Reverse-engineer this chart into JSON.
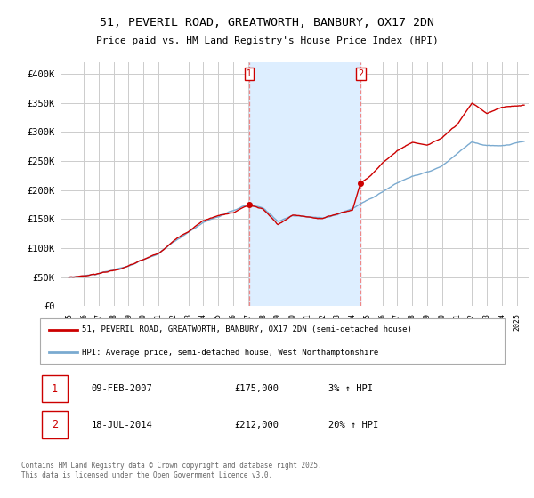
{
  "title_line1": "51, PEVERIL ROAD, GREATWORTH, BANBURY, OX17 2DN",
  "title_line2": "Price paid vs. HM Land Registry's House Price Index (HPI)",
  "ylabel_ticks": [
    "£0",
    "£50K",
    "£100K",
    "£150K",
    "£200K",
    "£250K",
    "£300K",
    "£350K",
    "£400K"
  ],
  "ytick_values": [
    0,
    50000,
    100000,
    150000,
    200000,
    250000,
    300000,
    350000,
    400000
  ],
  "ylim": [
    0,
    420000
  ],
  "xlim_start": 1994.5,
  "xlim_end": 2025.8,
  "plot_bg_color": "#ffffff",
  "grid_color": "#cccccc",
  "shade_color": "#ddeeff",
  "red_line_color": "#cc0000",
  "blue_line_color": "#7aaad0",
  "vline_color": "#ee8888",
  "annotation_box_color": "#cc0000",
  "sale1_x": 2007.08,
  "sale1_y": 175000,
  "sale1_label": "1",
  "sale1_date": "09-FEB-2007",
  "sale1_price": "£175,000",
  "sale1_hpi": "3% ↑ HPI",
  "sale2_x": 2014.54,
  "sale2_y": 212000,
  "sale2_label": "2",
  "sale2_date": "18-JUL-2014",
  "sale2_price": "£212,000",
  "sale2_hpi": "20% ↑ HPI",
  "legend_label_red": "51, PEVERIL ROAD, GREATWORTH, BANBURY, OX17 2DN (semi-detached house)",
  "legend_label_blue": "HPI: Average price, semi-detached house, West Northamptonshire",
  "footer_text": "Contains HM Land Registry data © Crown copyright and database right 2025.\nThis data is licensed under the Open Government Licence v3.0."
}
